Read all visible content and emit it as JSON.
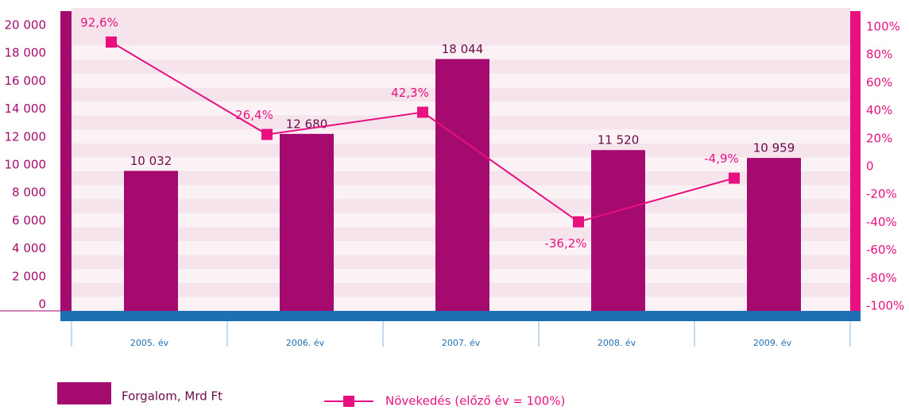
{
  "chart_data": {
    "type": "bar-line",
    "categories": [
      "2005. év",
      "2006. év",
      "2007. év",
      "2008. év",
      "2009. év"
    ],
    "series": [
      {
        "name": "Forgalom, Mrd Ft",
        "type": "bar",
        "color": "#a50a6e",
        "values": [
          10032,
          12680,
          18044,
          11520,
          10959
        ],
        "value_labels": [
          "10 032",
          "12 680",
          "18 044",
          "11 520",
          "10 959"
        ]
      },
      {
        "name": "Növekedés (előző év = 100%)",
        "type": "line",
        "axis": "y2",
        "color": "#e8107f",
        "values": [
          92.6,
          26.4,
          42.3,
          -36.2,
          -4.9
        ],
        "value_labels": [
          "92,6%",
          "26,4%",
          "42,3%",
          "-36,2%",
          "-4,9%"
        ]
      }
    ],
    "ylim": [
      0,
      20000
    ],
    "yticks": [
      0,
      {
        "value": 2000,
        "label": "2 000"
      },
      {
        "value": 4000,
        "label": "4 000"
      },
      {
        "value": 6000,
        "label": "6 000"
      },
      {
        "value": 8000,
        "label": "8 000"
      },
      {
        "value": 10000,
        "label": "10 000"
      },
      {
        "value": 12000,
        "label": "12 000"
      },
      {
        "value": 14000,
        "label": "14 000"
      },
      {
        "value": 16000,
        "label": "16 000"
      },
      {
        "value": 18000,
        "label": "18 000"
      },
      {
        "value": 20000,
        "label": "20 000"
      }
    ],
    "y2lim": [
      -100,
      100
    ],
    "y2ticks": [
      {
        "value": -100,
        "label": "-100%"
      },
      {
        "value": -80,
        "label": "-80%"
      },
      {
        "value": -60,
        "label": "-60%"
      },
      {
        "value": -40,
        "label": "-40%"
      },
      {
        "value": -20,
        "label": "-20%"
      },
      0,
      {
        "value": 20,
        "label": "20%"
      },
      {
        "value": 40,
        "label": "40%"
      },
      {
        "value": 60,
        "label": "60%"
      },
      {
        "value": 80,
        "label": "80%"
      },
      {
        "value": 100,
        "label": "100%"
      }
    ],
    "grid": true
  }
}
